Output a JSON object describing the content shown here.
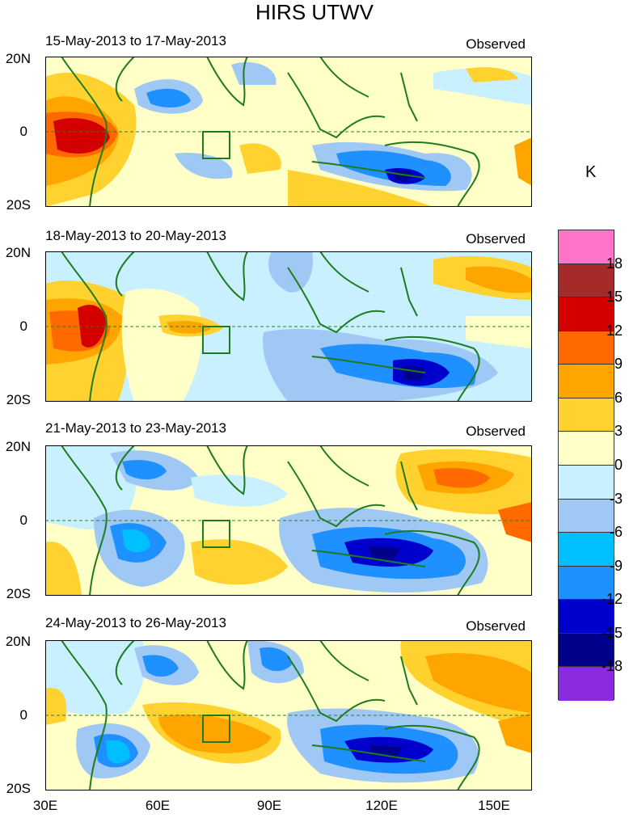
{
  "title": "HIRS UTWV",
  "colorbar": {
    "unit": "K",
    "levels": [
      "18",
      "15",
      "12",
      "9",
      "6",
      "3",
      "0",
      "-3",
      "-6",
      "-9",
      "-12",
      "-15",
      "-18"
    ],
    "colors": [
      "#ff73c8",
      "#a52a2a",
      "#d40000",
      "#ff6a00",
      "#ffa500",
      "#ffd230",
      "#ffffc8",
      "#c8f0ff",
      "#a0c8f5",
      "#00bfff",
      "#1e90ff",
      "#0000cd",
      "#00008b",
      "#8a2be2"
    ]
  },
  "axes": {
    "lat_ticks": [
      "20N",
      "0",
      "20S"
    ],
    "lon_ticks": [
      "30E",
      "60E",
      "90E",
      "120E",
      "150E"
    ],
    "lat_range": [
      -20,
      20
    ],
    "lon_range": [
      30,
      160
    ]
  },
  "panels": [
    {
      "dates": "15-May-2013 to 17-May-2013",
      "label": "Observed"
    },
    {
      "dates": "18-May-2013 to 20-May-2013",
      "label": "Observed"
    },
    {
      "dates": "21-May-2013 to 23-May-2013",
      "label": "Observed"
    },
    {
      "dates": "24-May-2013 to 26-May-2013",
      "label": "Observed"
    }
  ]
}
